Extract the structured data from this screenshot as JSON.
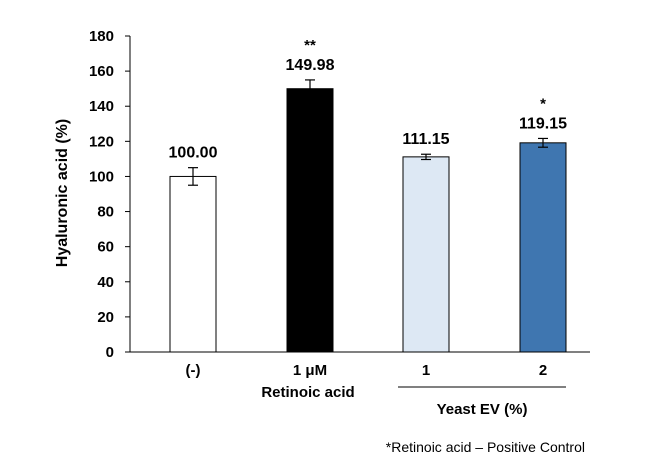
{
  "chart_data": {
    "type": "bar",
    "categories": [
      "(-)",
      "1 μM",
      "1",
      "2"
    ],
    "values": [
      100.0,
      149.98,
      111.15,
      119.15
    ],
    "errors": [
      5.0,
      5.0,
      1.5,
      2.5
    ],
    "data_labels": [
      "100.00",
      "149.98",
      "111.15",
      "119.15"
    ],
    "significance": [
      "",
      "**",
      "",
      "*"
    ],
    "bar_colors": [
      "#ffffff",
      "#000000",
      "#dde8f4",
      "#3f76b0"
    ],
    "ylabel": "Hyaluronic acid (%)",
    "ylim": [
      0,
      180
    ],
    "yticks": [
      "0",
      "20",
      "40",
      "60",
      "80",
      "100",
      "120",
      "140",
      "160",
      "180"
    ],
    "group_labels": {
      "retinoic_acid": "Retinoic acid",
      "yeast_ev": "Yeast EV (%)"
    },
    "footnote": "*Retinoic acid – Positive Control",
    "grid": false,
    "legend": "none"
  }
}
